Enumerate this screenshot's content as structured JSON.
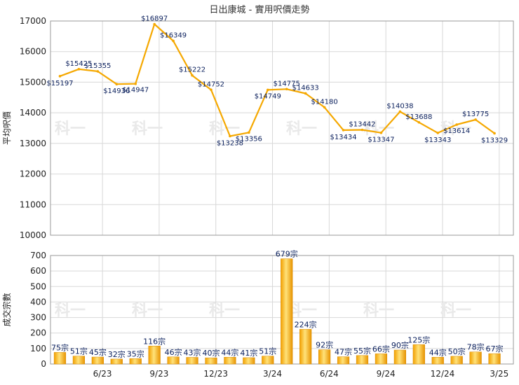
{
  "chart_data": [
    {
      "type": "line",
      "title": "日出康城 - 實用呎價走勢",
      "ylabel": "平均呎價",
      "ylim": [
        10000,
        17000
      ],
      "yticks": [
        10000,
        11000,
        12000,
        13000,
        14000,
        15000,
        16000,
        17000
      ],
      "xtick_labels": [
        "6/23",
        "9/23",
        "12/23",
        "3/24",
        "6/24",
        "9/24",
        "12/24",
        "3/25"
      ],
      "grid": true,
      "color": "#f5a800",
      "values": [
        15197,
        15425,
        15355,
        14936,
        14947,
        16897,
        16349,
        15222,
        14752,
        13238,
        13356,
        14749,
        14775,
        14633,
        14180,
        13434,
        13442,
        13347,
        14038,
        13688,
        13343,
        13614,
        13775,
        13329
      ],
      "labels": [
        "$15197",
        "$15425",
        "$15355",
        "$14936",
        "$14947",
        "$16897",
        "$16349",
        "$15222",
        "$14752",
        "$13238",
        "$13356",
        "$14749",
        "$14775",
        "$14633",
        "$14180",
        "$13434",
        "$13442",
        "$13347",
        "$14038",
        "$13688",
        "$13343",
        "$13614",
        "$13775",
        "$13329"
      ]
    },
    {
      "type": "bar",
      "ylabel": "成交宗數",
      "ylim": [
        0,
        700
      ],
      "yticks": [
        0,
        100,
        200,
        300,
        400,
        500,
        600,
        700
      ],
      "xtick_labels": [
        "6/23",
        "9/23",
        "12/23",
        "3/24",
        "6/24",
        "9/24",
        "12/24",
        "3/25"
      ],
      "grid": true,
      "color": "#f5a800",
      "values": [
        75,
        51,
        45,
        32,
        35,
        116,
        46,
        43,
        40,
        44,
        41,
        51,
        679,
        224,
        92,
        47,
        55,
        66,
        90,
        125,
        44,
        50,
        78,
        67
      ],
      "labels": [
        "75宗",
        "51宗",
        "45宗",
        "32宗",
        "35宗",
        "116宗",
        "46宗",
        "43宗",
        "40宗",
        "44宗",
        "41宗",
        "51宗",
        "679宗",
        "224宗",
        "92宗",
        "47宗",
        "55宗",
        "66宗",
        "90宗",
        "125宗",
        "44宗",
        "50宗",
        "78宗",
        "67宗"
      ]
    }
  ],
  "watermark": "科一"
}
